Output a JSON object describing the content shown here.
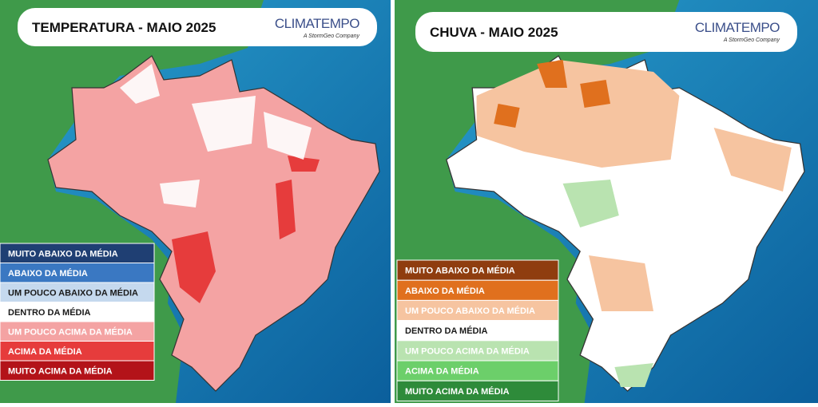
{
  "panels": [
    {
      "title": "TEMPERATURA - MAIO 2025",
      "brand": "CLIMATEMPO",
      "brand_sub": "A StormGeo Company",
      "legend": [
        {
          "label": "MUITO ABAIXO DA MÉDIA",
          "color": "#1f3f73",
          "text_color": "#ffffff"
        },
        {
          "label": "ABAIXO DA MÉDIA",
          "color": "#3a78c2",
          "text_color": "#ffffff"
        },
        {
          "label": "UM POUCO ABAIXO DA MÉDIA",
          "color": "#c5d9ee",
          "text_color": "#1a1a1a"
        },
        {
          "label": "DENTRO DA MÉDIA",
          "color": "#ffffff",
          "text_color": "#1a1a1a"
        },
        {
          "label": "UM POUCO ACIMA DA MÉDIA",
          "color": "#f4a3a3",
          "text_color": "#ffffff"
        },
        {
          "label": "ACIMA DA MÉDIA",
          "color": "#e63c3c",
          "text_color": "#ffffff"
        },
        {
          "label": "MUITO ACIMA DA MÉDIA",
          "color": "#b31319",
          "text_color": "#ffffff"
        }
      ]
    },
    {
      "title": "CHUVA - MAIO 2025",
      "brand": "CLIMATEMPO",
      "brand_sub": "A StormGeo Company",
      "legend": [
        {
          "label": "MUITO ABAIXO DA MÉDIA",
          "color": "#8f3d0f",
          "text_color": "#ffffff"
        },
        {
          "label": "ABAIXO DA MÉDIA",
          "color": "#e0701e",
          "text_color": "#ffffff"
        },
        {
          "label": "UM POUCO ABAIXO DA MÉDIA",
          "color": "#f6c4a0",
          "text_color": "#ffffff"
        },
        {
          "label": "DENTRO DA MÉDIA",
          "color": "#ffffff",
          "text_color": "#1a1a1a"
        },
        {
          "label": "UM POUCO ACIMA DA MÉDIA",
          "color": "#b9e3b0",
          "text_color": "#ffffff"
        },
        {
          "label": "ACIMA DA MÉDIA",
          "color": "#6ccf6a",
          "text_color": "#ffffff"
        },
        {
          "label": "MUITO ACIMA DA MÉDIA",
          "color": "#2e8b3a",
          "text_color": "#ffffff"
        }
      ]
    }
  ]
}
